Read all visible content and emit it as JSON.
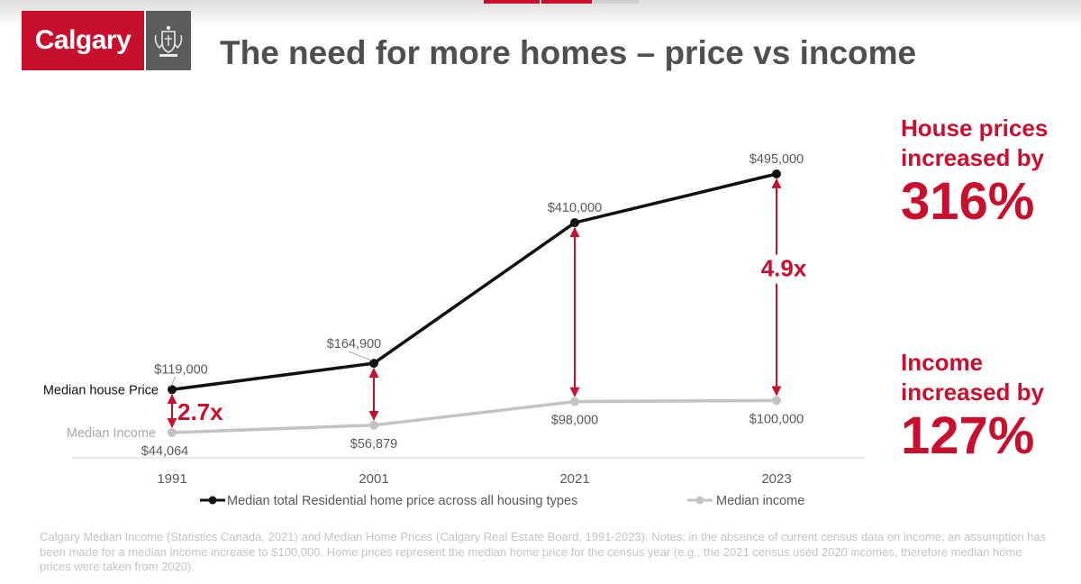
{
  "header": {
    "logo_text": "Calgary",
    "title": "The need for more homes – price vs income"
  },
  "colors": {
    "brand_red": "#c8102e",
    "price_line": "#111111",
    "income_line": "#c3c3c3",
    "axis": "#d9d9d9",
    "text_gray": "#595959"
  },
  "chart_data": {
    "type": "line",
    "categories": [
      "1991",
      "2001",
      "2021",
      "2023"
    ],
    "series": [
      {
        "key": "price",
        "name": "Median total Residential home price across all housing types",
        "values": [
          119000,
          164900,
          410000,
          495000
        ],
        "labels": [
          "$119,000",
          "$164,900",
          "$410,000",
          "$495,000"
        ],
        "color": "#111111"
      },
      {
        "key": "income",
        "name": "Median income",
        "values": [
          44064,
          56879,
          98000,
          100000
        ],
        "labels": [
          "$44,064",
          "$56,879",
          "$98,000",
          "$100,000"
        ],
        "color": "#c3c3c3"
      }
    ],
    "line_labels": {
      "price": "Median house Price",
      "income": "Median Income"
    },
    "ratio_annotations": [
      {
        "category": "1991",
        "text": "2.7x"
      },
      {
        "category": "2023",
        "text": "4.9x"
      }
    ],
    "ratio_arrows_at": [
      "1991",
      "2001",
      "2021",
      "2023"
    ],
    "ylim": [
      0,
      550000
    ],
    "y_axis_visible": false,
    "grid": false,
    "legend_position": "bottom"
  },
  "callouts": {
    "house": {
      "line1": "House prices",
      "line2": "increased by",
      "value": "316%"
    },
    "income": {
      "line1": "Income",
      "line2": "increased by",
      "value": "127%"
    }
  },
  "note": "Calgary Median Income (Statistics Canada, 2021) and Median Home Prices (Calgary Real Estate Board, 1991-2023). Notes: in the absence of current census data on income, an assumption has been made for a median income increase to $100,000. Home prices represent the median home price for the census year (e.g., the 2021 census used 2020 incomes, therefore median home prices were taken from 2020)."
}
